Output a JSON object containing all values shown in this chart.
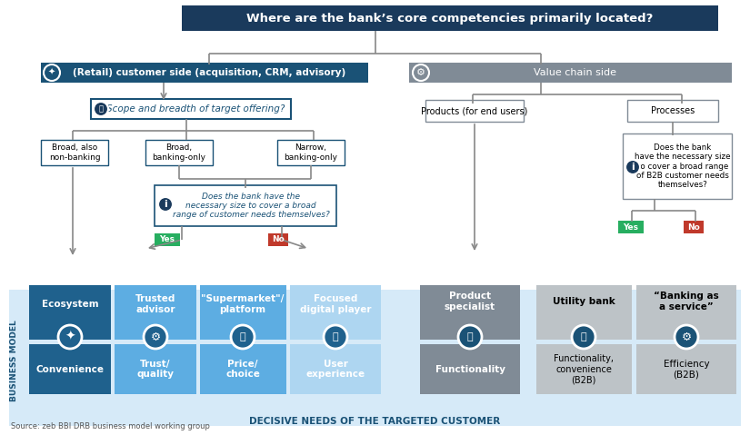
{
  "title": "Where are the bank’s core competencies primarily located?",
  "title_bg": "#1a3a5c",
  "title_text_color": "#ffffff",
  "left_branch_label": "(Retail) customer side (acquisition, CRM, advisory)",
  "right_branch_label": "Value chain side",
  "left_branch_bg": "#1a5276",
  "right_branch_bg": "#808b96",
  "question1": "Scope and breadth of target offering?",
  "q1_bg": "#ffffff",
  "q1_border": "#1a5276",
  "options": [
    "Broad, also\nnon-banking",
    "Broad,\nbanking-only",
    "Narrow,\nbanking-only"
  ],
  "options_bg": "#ffffff",
  "options_border": "#1a5276",
  "question2": "Does the bank have the\nnecessary size to cover a broad\nrange of customer needs themselves?",
  "q2_bg": "#ffffff",
  "q2_border": "#1a5276",
  "yes_color": "#27ae60",
  "no_color": "#c0392b",
  "vchain_q": "Does the bank\nhave the necessary size\nto cover a broad range\nof B2B customer needs\nthemselves?",
  "vchain_q_bg": "#ffffff",
  "vchain_q_border": "#808b96",
  "vchain_products": "Products (for end users)",
  "vchain_processes": "Processes",
  "vchain_box_bg": "#ffffff",
  "vchain_box_border": "#808b96",
  "bottom_bg": "#d6eaf8",
  "bottom_label_color": "#1a5276",
  "bottom_label": "DECISIVE NEEDS OF THE TARGETED CUSTOMER",
  "bm_label": "BUSINESS MODEL",
  "source": "Source: zeb BBI DRB business model working group",
  "models_dark_blue": [
    "Ecosystem",
    "Convenience"
  ],
  "models_mid_blue": [
    "Trusted\nadvisor",
    "Trust/\nquality",
    "\"Supermarket\"/\nplatform",
    "Price/\nchoice",
    "Focused\ndigital player",
    "User\nexperience"
  ],
  "models_dark_blue_color": "#1f618d",
  "models_mid_blue_color": "#5dade2",
  "models_light_blue_color": "#aed6f1",
  "models_gray_dark": "#808b96",
  "models_gray_light": "#bdc3c7",
  "product_specialist": "Product\nspecialist",
  "functionality": "Functionality",
  "utility_bank": "Utility bank",
  "func_conv": "Functionality,\nconvenience\n(B2B)",
  "banking_service": "“Banking as\na service”",
  "efficiency": "Efficiency\n(B2B)"
}
